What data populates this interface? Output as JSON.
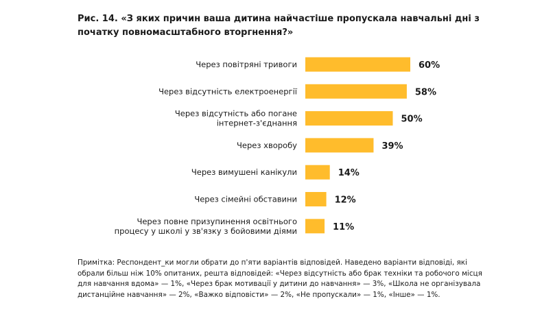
{
  "title": "Рис. 14. «З яких причин ваша дитина найчастіше пропускала навчальні дні з початку повномасштабного вторгнення?»",
  "note": "Примітка: Респондент_ки могли обрати до п'яти варіантів відповідей. Наведено варіанти відповіді, які обрали більш ніж 10% опитаних, решта відповідей: «Через відсутність або брак техніки та робочого місця для навчання вдома» — 1%, «Через брак мотивації у дитини до навчання» — 3%, «Школа не організувала дистанційне навчання» — 2%, «Важко відповісти» — 2%, «Не пропускали» — 1%, «Інше» — 1%.",
  "colors": {
    "bar": "#FFBC2C",
    "text": "#1a1a1a"
  },
  "chart_data": {
    "type": "bar",
    "orientation": "horizontal",
    "title": "Рис. 14. «З яких причин ваша дитина найчастіше пропускала навчальні дні з початку повномасштабного вторгнення?»",
    "categories": [
      [
        "Через повітряні тривоги"
      ],
      [
        "Через відсутність електроенергії"
      ],
      [
        "Через відсутність або погане",
        "інтернет-з'єднання"
      ],
      [
        "Через хворобу"
      ],
      [
        "Через вимушені канікули"
      ],
      [
        "Через сімейні обставини"
      ],
      [
        "Через повне призупинення освітнього",
        "процесу у школі у зв'язку з бойовими діями"
      ]
    ],
    "values": [
      60,
      58,
      50,
      39,
      14,
      12,
      11
    ],
    "value_labels": [
      "60%",
      "58%",
      "50%",
      "39%",
      "14%",
      "12%",
      "11%"
    ],
    "xlim": [
      0,
      100
    ],
    "grid": false,
    "legend": "none"
  }
}
